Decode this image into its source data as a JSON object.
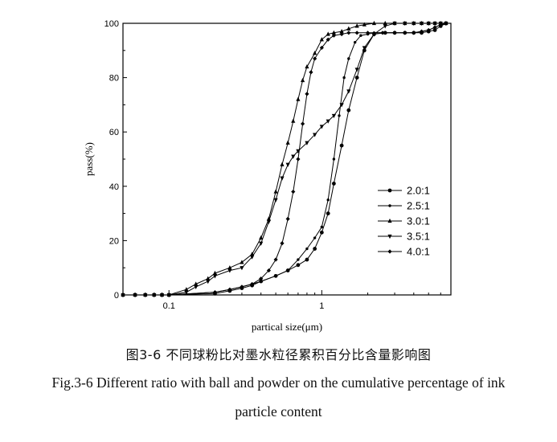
{
  "chart_data": {
    "type": "line",
    "xscale": "log",
    "xlim": [
      0.05,
      7
    ],
    "ylim": [
      0,
      100
    ],
    "xticks": [
      0.1,
      1
    ],
    "xtick_labels": [
      "0.1",
      "1"
    ],
    "yticks": [
      0,
      20,
      40,
      60,
      80,
      100
    ],
    "ytick_labels": [
      "0",
      "20",
      "40",
      "60",
      "80",
      "100"
    ],
    "xlabel": "partical size(μm)",
    "ylabel": "pass(%)",
    "legend_position": "right",
    "series": [
      {
        "name": "2.0:1",
        "marker": "circle",
        "x": [
          0.05,
          0.06,
          0.07,
          0.08,
          0.09,
          0.1,
          0.2,
          0.25,
          0.3,
          0.35,
          0.4,
          0.5,
          0.6,
          0.7,
          0.8,
          0.9,
          1.0,
          1.1,
          1.2,
          1.35,
          1.5,
          1.7,
          1.9,
          2.2,
          2.6,
          3.0,
          3.5,
          4.0,
          4.5,
          5.0,
          5.5,
          6.0,
          6.5
        ],
        "y": [
          0,
          0,
          0,
          0,
          0,
          0,
          0.5,
          1.5,
          2.5,
          3.5,
          5,
          7,
          9,
          11,
          13,
          17,
          23,
          30,
          41,
          55,
          68,
          80,
          90,
          96,
          96.5,
          96.5,
          96.5,
          96.5,
          96.5,
          97,
          97.5,
          99,
          100
        ]
      },
      {
        "name": "2.5:1",
        "marker": "dot",
        "x": [
          0.05,
          0.06,
          0.07,
          0.08,
          0.09,
          0.1,
          0.2,
          0.25,
          0.3,
          0.35,
          0.4,
          0.5,
          0.6,
          0.7,
          0.8,
          0.9,
          1.0,
          1.1,
          1.2,
          1.3,
          1.4,
          1.5,
          1.65,
          1.8,
          2.0,
          2.2,
          2.5,
          3.0,
          3.5,
          4.0,
          4.5,
          5.0,
          5.5,
          6.0,
          6.5
        ],
        "y": [
          0,
          0,
          0,
          0,
          0,
          0,
          1,
          2,
          3,
          4,
          5,
          7,
          9,
          13,
          17,
          21,
          25,
          35,
          50,
          66,
          80,
          87,
          93,
          95.5,
          96,
          96.5,
          96.5,
          96.5,
          96.5,
          96.5,
          97,
          97.5,
          98.5,
          99.5,
          100
        ]
      },
      {
        "name": "3.0:1",
        "marker": "triangle-up",
        "x": [
          0.05,
          0.06,
          0.07,
          0.08,
          0.09,
          0.1,
          0.13,
          0.15,
          0.18,
          0.2,
          0.25,
          0.3,
          0.35,
          0.4,
          0.45,
          0.5,
          0.55,
          0.6,
          0.65,
          0.7,
          0.75,
          0.8,
          0.9,
          1.0,
          1.1,
          1.2,
          1.35,
          1.5,
          1.7,
          1.9,
          2.2,
          2.6,
          3.0,
          3.5,
          4.0,
          4.5,
          5.0,
          5.5,
          6.0,
          6.5
        ],
        "y": [
          0,
          0,
          0,
          0,
          0,
          0,
          2,
          4,
          6,
          8,
          10,
          12,
          15,
          21,
          28,
          38,
          48,
          56,
          64,
          72,
          79,
          84,
          89,
          94,
          96,
          96.5,
          97,
          98,
          99,
          99.5,
          100,
          100,
          100,
          100,
          100,
          100,
          100,
          100,
          100,
          100
        ]
      },
      {
        "name": "3.5:1",
        "marker": "triangle-down",
        "x": [
          0.05,
          0.06,
          0.07,
          0.08,
          0.09,
          0.1,
          0.13,
          0.15,
          0.18,
          0.2,
          0.25,
          0.3,
          0.35,
          0.4,
          0.45,
          0.5,
          0.55,
          0.6,
          0.65,
          0.7,
          0.8,
          0.9,
          1.0,
          1.1,
          1.2,
          1.35,
          1.5,
          1.7,
          1.9,
          2.2,
          2.6,
          3.0,
          3.5,
          4.0,
          4.5,
          5.0,
          5.5,
          6.0,
          6.5
        ],
        "y": [
          0,
          0,
          0,
          0,
          0,
          0,
          1,
          3,
          5,
          7,
          9,
          10,
          14,
          19,
          27,
          35,
          43,
          48,
          51,
          53,
          56,
          59,
          62,
          64,
          66,
          70,
          75,
          83,
          91,
          96,
          99,
          100,
          100,
          100,
          100,
          100,
          100,
          100,
          100
        ]
      },
      {
        "name": "4.0:1",
        "marker": "diamond",
        "x": [
          0.05,
          0.06,
          0.07,
          0.08,
          0.09,
          0.1,
          0.2,
          0.25,
          0.3,
          0.35,
          0.4,
          0.45,
          0.5,
          0.55,
          0.6,
          0.65,
          0.7,
          0.75,
          0.8,
          0.85,
          0.9,
          1.0,
          1.1,
          1.2,
          1.35,
          1.5,
          1.7,
          2.0,
          2.5,
          3.0,
          3.5,
          4.0,
          4.5,
          5.0,
          5.5,
          6.0,
          6.5
        ],
        "y": [
          0,
          0,
          0,
          0,
          0,
          0,
          1,
          2,
          3,
          4,
          6,
          9,
          13,
          19,
          28,
          38,
          50,
          63,
          74,
          82,
          87,
          91,
          94,
          95.5,
          96,
          96.5,
          96.5,
          96.5,
          96.5,
          96.5,
          96.5,
          96.5,
          97,
          97.5,
          98.5,
          99.5,
          100
        ]
      }
    ]
  },
  "caption": {
    "chinese": "图3-6  不同球粉比对墨水粒径累积百分比含量影响图",
    "english_line1": "Fig.3-6 Different ratio with ball and powder on the cumulative percentage of ink",
    "english_line2": "particle content"
  }
}
